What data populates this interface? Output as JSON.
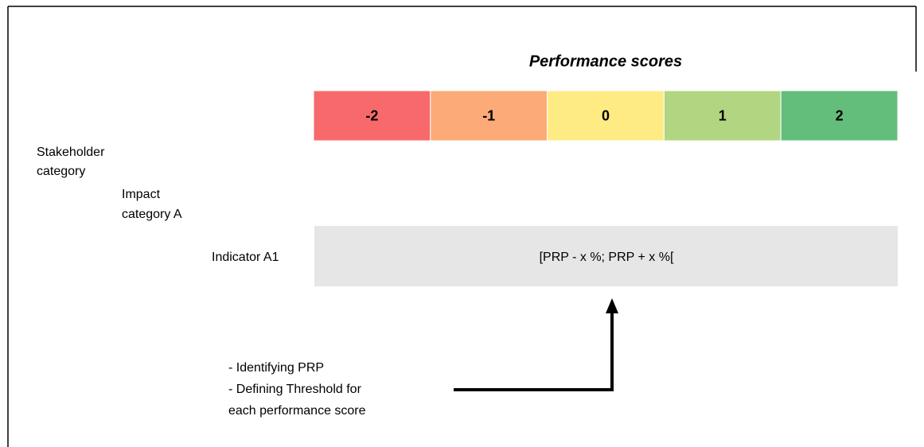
{
  "title": "Performance scores",
  "scores": [
    {
      "label": "-2",
      "color": "#f8696b"
    },
    {
      "label": "-1",
      "color": "#fcaa78"
    },
    {
      "label": "0",
      "color": "#ffeb84"
    },
    {
      "label": "1",
      "color": "#b1d580"
    },
    {
      "label": "2",
      "color": "#63be7b"
    }
  ],
  "hierarchy": {
    "stakeholder": [
      "Stakeholder",
      "category"
    ],
    "impact": [
      "Impact",
      "category A"
    ],
    "indicator": "Indicator A1"
  },
  "range_label": "[PRP - x %; PRP + x %[",
  "notes": [
    "- Identifying PRP",
    "- Defining Threshold for",
    "each performance score"
  ]
}
